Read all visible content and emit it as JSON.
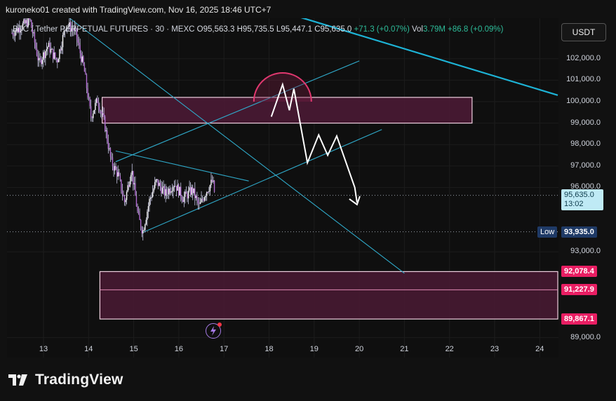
{
  "header": {
    "author_line": "kuroneko01 created with TradingView.com, Nov 16, 2025 18:46 UTC+7"
  },
  "legend": {
    "symbol": "BTC / Tether PERPETUAL FUTURES · 30 · MEXC",
    "open": "O95,563.3",
    "high": "H95,735.5",
    "low": "L95,447.1",
    "close": "C95,635.0",
    "change": "+71.3 (+0.07%)",
    "vol_label": "Vol",
    "vol": "3.79M",
    "vol_change": "+86.8 (+0.09%)"
  },
  "currency_button": "USDT",
  "chart_data": {
    "type": "candlestick",
    "title": "BTC / Tether PERPETUAL FUTURES · 30 · MEXC",
    "xlabel": "",
    "ylabel": "",
    "x_ticks": [
      "13",
      "14",
      "15",
      "16",
      "17",
      "18",
      "19",
      "20",
      "21",
      "22",
      "23",
      "24"
    ],
    "y_ticks": [
      "102,000.0",
      "101,000.0",
      "100,000.0",
      "99,000.0",
      "98,000.0",
      "97,000.0",
      "96,000.0",
      "93,000.0",
      "89,000.0"
    ],
    "ylim": [
      88600,
      104500
    ],
    "xlim": [
      12.3,
      24.4
    ],
    "last_price": {
      "label": "95,635.0",
      "countdown": "13:02",
      "value": 95635
    },
    "low_marker": {
      "label": "Low",
      "value_label": "93,935.0",
      "value": 93935
    },
    "zone_labels": [
      {
        "label": "92,078.4",
        "value": 92078.4
      },
      {
        "label": "91,227.9",
        "value": 91227.9
      },
      {
        "label": "89,867.1",
        "value": 89867.1
      }
    ],
    "price_path": [
      [
        12.3,
        103200
      ],
      [
        12.5,
        103500
      ],
      [
        12.7,
        103800
      ],
      [
        12.9,
        101800
      ],
      [
        13.1,
        102600
      ],
      [
        13.3,
        101900
      ],
      [
        13.5,
        103600
      ],
      [
        13.7,
        103300
      ],
      [
        13.9,
        101500
      ],
      [
        14.05,
        99300
      ],
      [
        14.2,
        100100
      ],
      [
        14.35,
        99000
      ],
      [
        14.5,
        97200
      ],
      [
        14.65,
        96600
      ],
      [
        14.8,
        95300
      ],
      [
        14.95,
        96900
      ],
      [
        15.1,
        94600
      ],
      [
        15.2,
        93950
      ],
      [
        15.35,
        95400
      ],
      [
        15.5,
        96300
      ],
      [
        15.7,
        95700
      ],
      [
        15.9,
        96200
      ],
      [
        16.1,
        95500
      ],
      [
        16.3,
        95900
      ],
      [
        16.45,
        95100
      ],
      [
        16.6,
        95800
      ],
      [
        16.75,
        96300
      ],
      [
        16.8,
        95640
      ]
    ],
    "drawings": {
      "resistance_zone": {
        "top": 100200,
        "bottom": 99000,
        "x_start": 14.3,
        "x_end": 22.5
      },
      "support_zone": {
        "top": 92078.4,
        "bottom": 89867.1,
        "x_start": 14.25,
        "x_end": 24.4
      },
      "projected_path": [
        [
          18.05,
          99300
        ],
        [
          18.3,
          100800
        ],
        [
          18.45,
          99600
        ],
        [
          18.55,
          100600
        ],
        [
          18.85,
          97150
        ],
        [
          19.1,
          98450
        ],
        [
          19.3,
          97500
        ],
        [
          19.5,
          98400
        ],
        [
          19.9,
          96000
        ],
        [
          19.95,
          95300
        ]
      ],
      "arc_center": [
        18.3,
        100000
      ],
      "lines": [
        {
          "from": [
            14.6,
            97200
          ],
          "to": [
            20.0,
            101900
          ],
          "color": "#2fa9c9"
        },
        {
          "from": [
            15.2,
            93900
          ],
          "to": [
            20.5,
            98700
          ],
          "color": "#2fa9c9"
        },
        {
          "from": [
            14.6,
            97700
          ],
          "to": [
            17.55,
            96300
          ],
          "color": "#2fa9c9"
        },
        {
          "from": [
            13.2,
            104500
          ],
          "to": [
            21.0,
            92000
          ],
          "color": "#2fa9c9"
        },
        {
          "from": [
            17.8,
            104500
          ],
          "to": [
            24.4,
            100300
          ],
          "color": "#1db3d6"
        }
      ]
    }
  },
  "footer": {
    "brand": "TradingView"
  },
  "colors": {
    "background": "#0f0f0f",
    "candle": "#c8c8e6",
    "zone_fill": "#4a1a34",
    "zone_border": "#f0d0e0",
    "trendline": "#2fa9c9",
    "arc": "#e0386f",
    "projection": "#ffffff",
    "price_label_bg": "#bfeaf5",
    "low_label_bg": "#1f3a66",
    "zone_label_bg": "#e91e63"
  },
  "icons": {
    "alert": "lightning-icon",
    "logo": "tradingview-logo"
  }
}
